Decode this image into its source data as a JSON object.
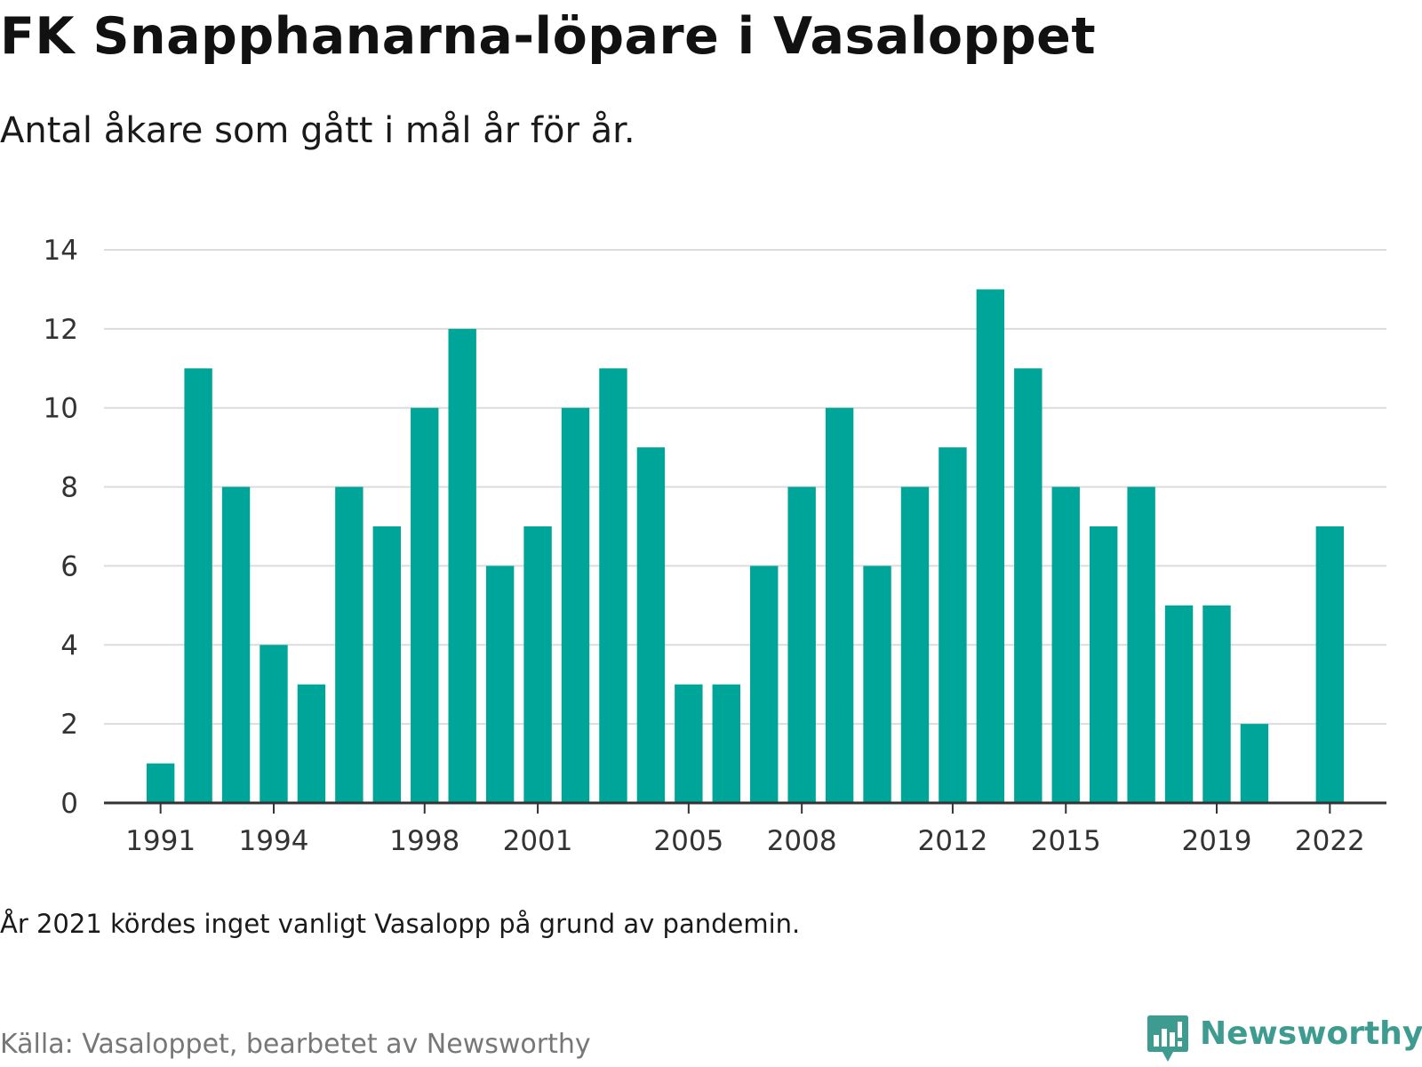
{
  "header": {
    "title": "FK Snapphanarna-löpare i Vasaloppet",
    "subtitle": "Antal åkare som gått i mål år för år."
  },
  "footer": {
    "note": "År 2021 kördes inget vanligt Vasalopp på grund av pandemin.",
    "source": "Källa: Vasaloppet, bearbetet av Newsworthy",
    "logo_text": "Newsworthy",
    "logo_icon": "newsworthy-logo-icon"
  },
  "colors": {
    "bar": "#00a59a",
    "grid": "#dcdcdc",
    "axis": "#333333",
    "logo": "#3d9c8f"
  },
  "chart_data": {
    "type": "bar",
    "title": "FK Snapphanarna-löpare i Vasaloppet",
    "subtitle": "Antal åkare som gått i mål år för år.",
    "xlabel": "",
    "ylabel": "",
    "ylim": [
      0,
      14
    ],
    "yticks": [
      0,
      2,
      4,
      6,
      8,
      10,
      12,
      14
    ],
    "xlim": [
      1989.5,
      2023.5
    ],
    "xticks": [
      1991,
      1994,
      1998,
      2001,
      2005,
      2008,
      2012,
      2015,
      2019,
      2022
    ],
    "grid": true,
    "legend": "none",
    "x": [
      1991,
      1992,
      1993,
      1994,
      1995,
      1996,
      1997,
      1998,
      1999,
      2000,
      2001,
      2002,
      2003,
      2004,
      2005,
      2006,
      2007,
      2008,
      2009,
      2010,
      2011,
      2012,
      2013,
      2014,
      2015,
      2016,
      2017,
      2018,
      2019,
      2020,
      2022
    ],
    "values": [
      1,
      11,
      8,
      4,
      3,
      8,
      7,
      10,
      12,
      6,
      7,
      10,
      11,
      9,
      3,
      3,
      6,
      8,
      10,
      6,
      8,
      9,
      13,
      11,
      8,
      7,
      8,
      5,
      5,
      2,
      7
    ]
  }
}
